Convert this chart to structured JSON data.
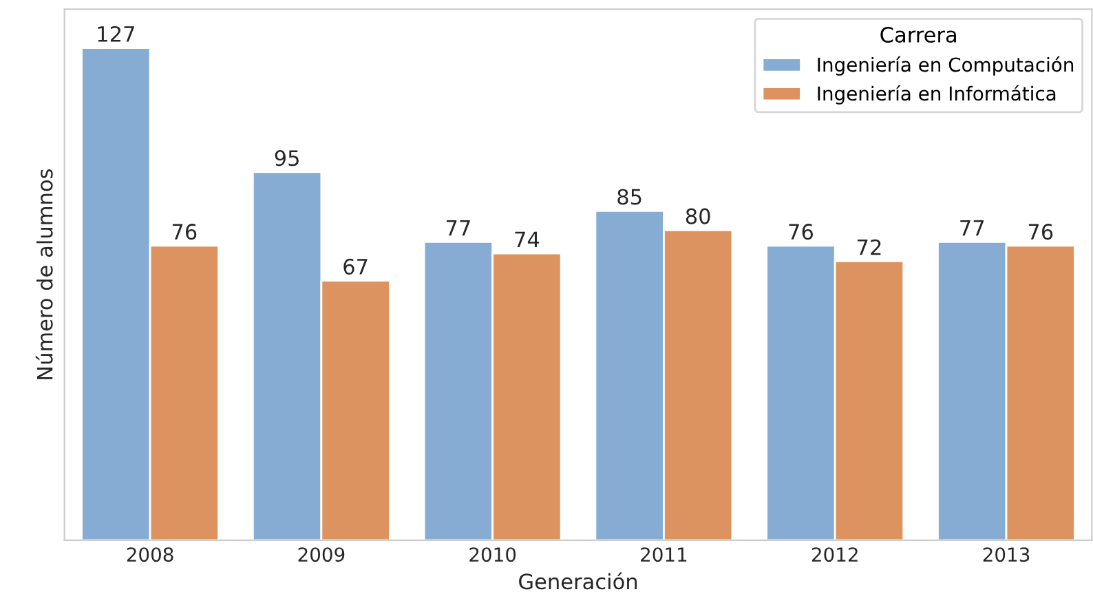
{
  "chart_data": {
    "type": "bar",
    "xlabel": "Generación",
    "ylabel": "Número de alumnos",
    "legend_title": "Carrera",
    "categories": [
      "2008",
      "2009",
      "2010",
      "2011",
      "2012",
      "2013"
    ],
    "series": [
      {
        "name": "Ingeniería en Computación",
        "color": "#86acd4",
        "values": [
          127,
          95,
          77,
          85,
          76,
          77
        ]
      },
      {
        "name": "Ingeniería en Informática",
        "color": "#dd9360",
        "values": [
          76,
          67,
          74,
          80,
          72,
          76
        ]
      }
    ],
    "ylim": [
      0,
      137
    ],
    "tick_labels": "x",
    "data_labels": true,
    "legend": "top right",
    "grid": false
  }
}
